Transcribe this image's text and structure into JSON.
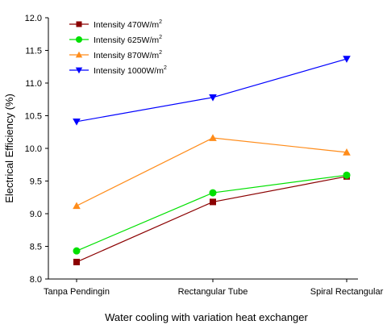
{
  "chart_data": {
    "type": "line",
    "categories": [
      "Tanpa Pendingin",
      "Rectangular Tube",
      "Spiral Rectangular"
    ],
    "xlabel": "Water cooling with variation heat exchanger",
    "ylabel": "Electrical Efficiency (%)",
    "ylim": [
      8.0,
      12.0
    ],
    "yticks": [
      "8.0",
      "8.5",
      "9.0",
      "9.5",
      "10.0",
      "10.5",
      "11.0",
      "11.5",
      "12.0"
    ],
    "legend_position": "top-left",
    "grid": false,
    "series": [
      {
        "name": "Intensity 470W/m",
        "superscript": "2",
        "marker": "square",
        "color": "#8b0000",
        "values": [
          8.26,
          9.18,
          9.57
        ]
      },
      {
        "name": "Intensity 625W/m",
        "superscript": "2",
        "marker": "circle",
        "color": "#00e000",
        "values": [
          8.43,
          9.32,
          9.59
        ]
      },
      {
        "name": "Intensity 870W/m",
        "superscript": "2",
        "marker": "triangle-up",
        "color": "#ff8c1a",
        "values": [
          9.12,
          10.16,
          9.94
        ]
      },
      {
        "name": "Intensity 1000W/m",
        "superscript": "2",
        "marker": "triangle-down",
        "color": "#0000ff",
        "values": [
          10.41,
          10.78,
          11.37
        ]
      }
    ]
  }
}
